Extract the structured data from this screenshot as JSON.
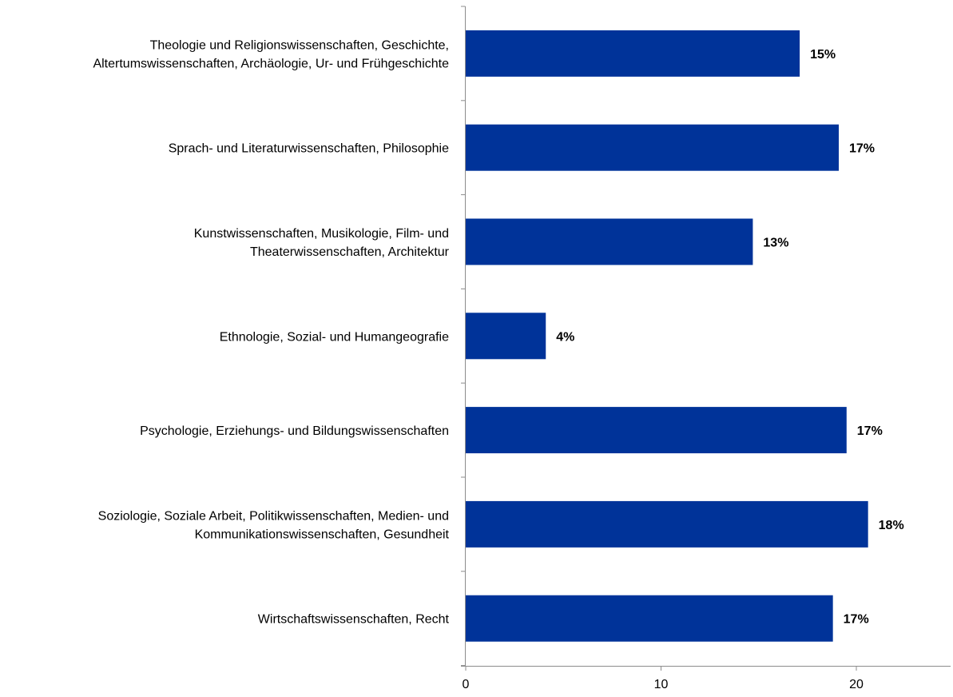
{
  "chart_data": {
    "type": "bar",
    "orientation": "horizontal",
    "title": "",
    "xlabel": "",
    "ylabel": "",
    "xlim": [
      0,
      25
    ],
    "x_ticks": [
      0,
      10,
      20
    ],
    "grid": false,
    "legend": "none",
    "bar_color": "#003399",
    "categories": [
      [
        "Theologie und Religionswissenschaften, Geschichte,",
        "Altertumswissenschaften, Archäologie, Ur- und Frühgeschichte"
      ],
      [
        "Sprach- und Literaturwissenschaften, Philosophie"
      ],
      [
        "Kunstwissenschaften, Musikologie, Film- und",
        "Theaterwissenschaften, Architektur"
      ],
      [
        "Ethnologie, Sozial- und Humangeografie"
      ],
      [
        "Psychologie, Erziehungs- und Bildungswissenschaften"
      ],
      [
        "Soziologie, Soziale Arbeit, Politikwissenschaften, Medien- und",
        "Kommunikationswissenschaften, Gesundheit"
      ],
      [
        "Wirtschaftswissenschaften, Recht"
      ]
    ],
    "values": [
      17.1,
      19.1,
      14.7,
      4.1,
      19.5,
      20.6,
      18.8
    ],
    "data_labels": [
      "15%",
      "17%",
      "13%",
      "4%",
      "17%",
      "18%",
      "17%"
    ]
  }
}
